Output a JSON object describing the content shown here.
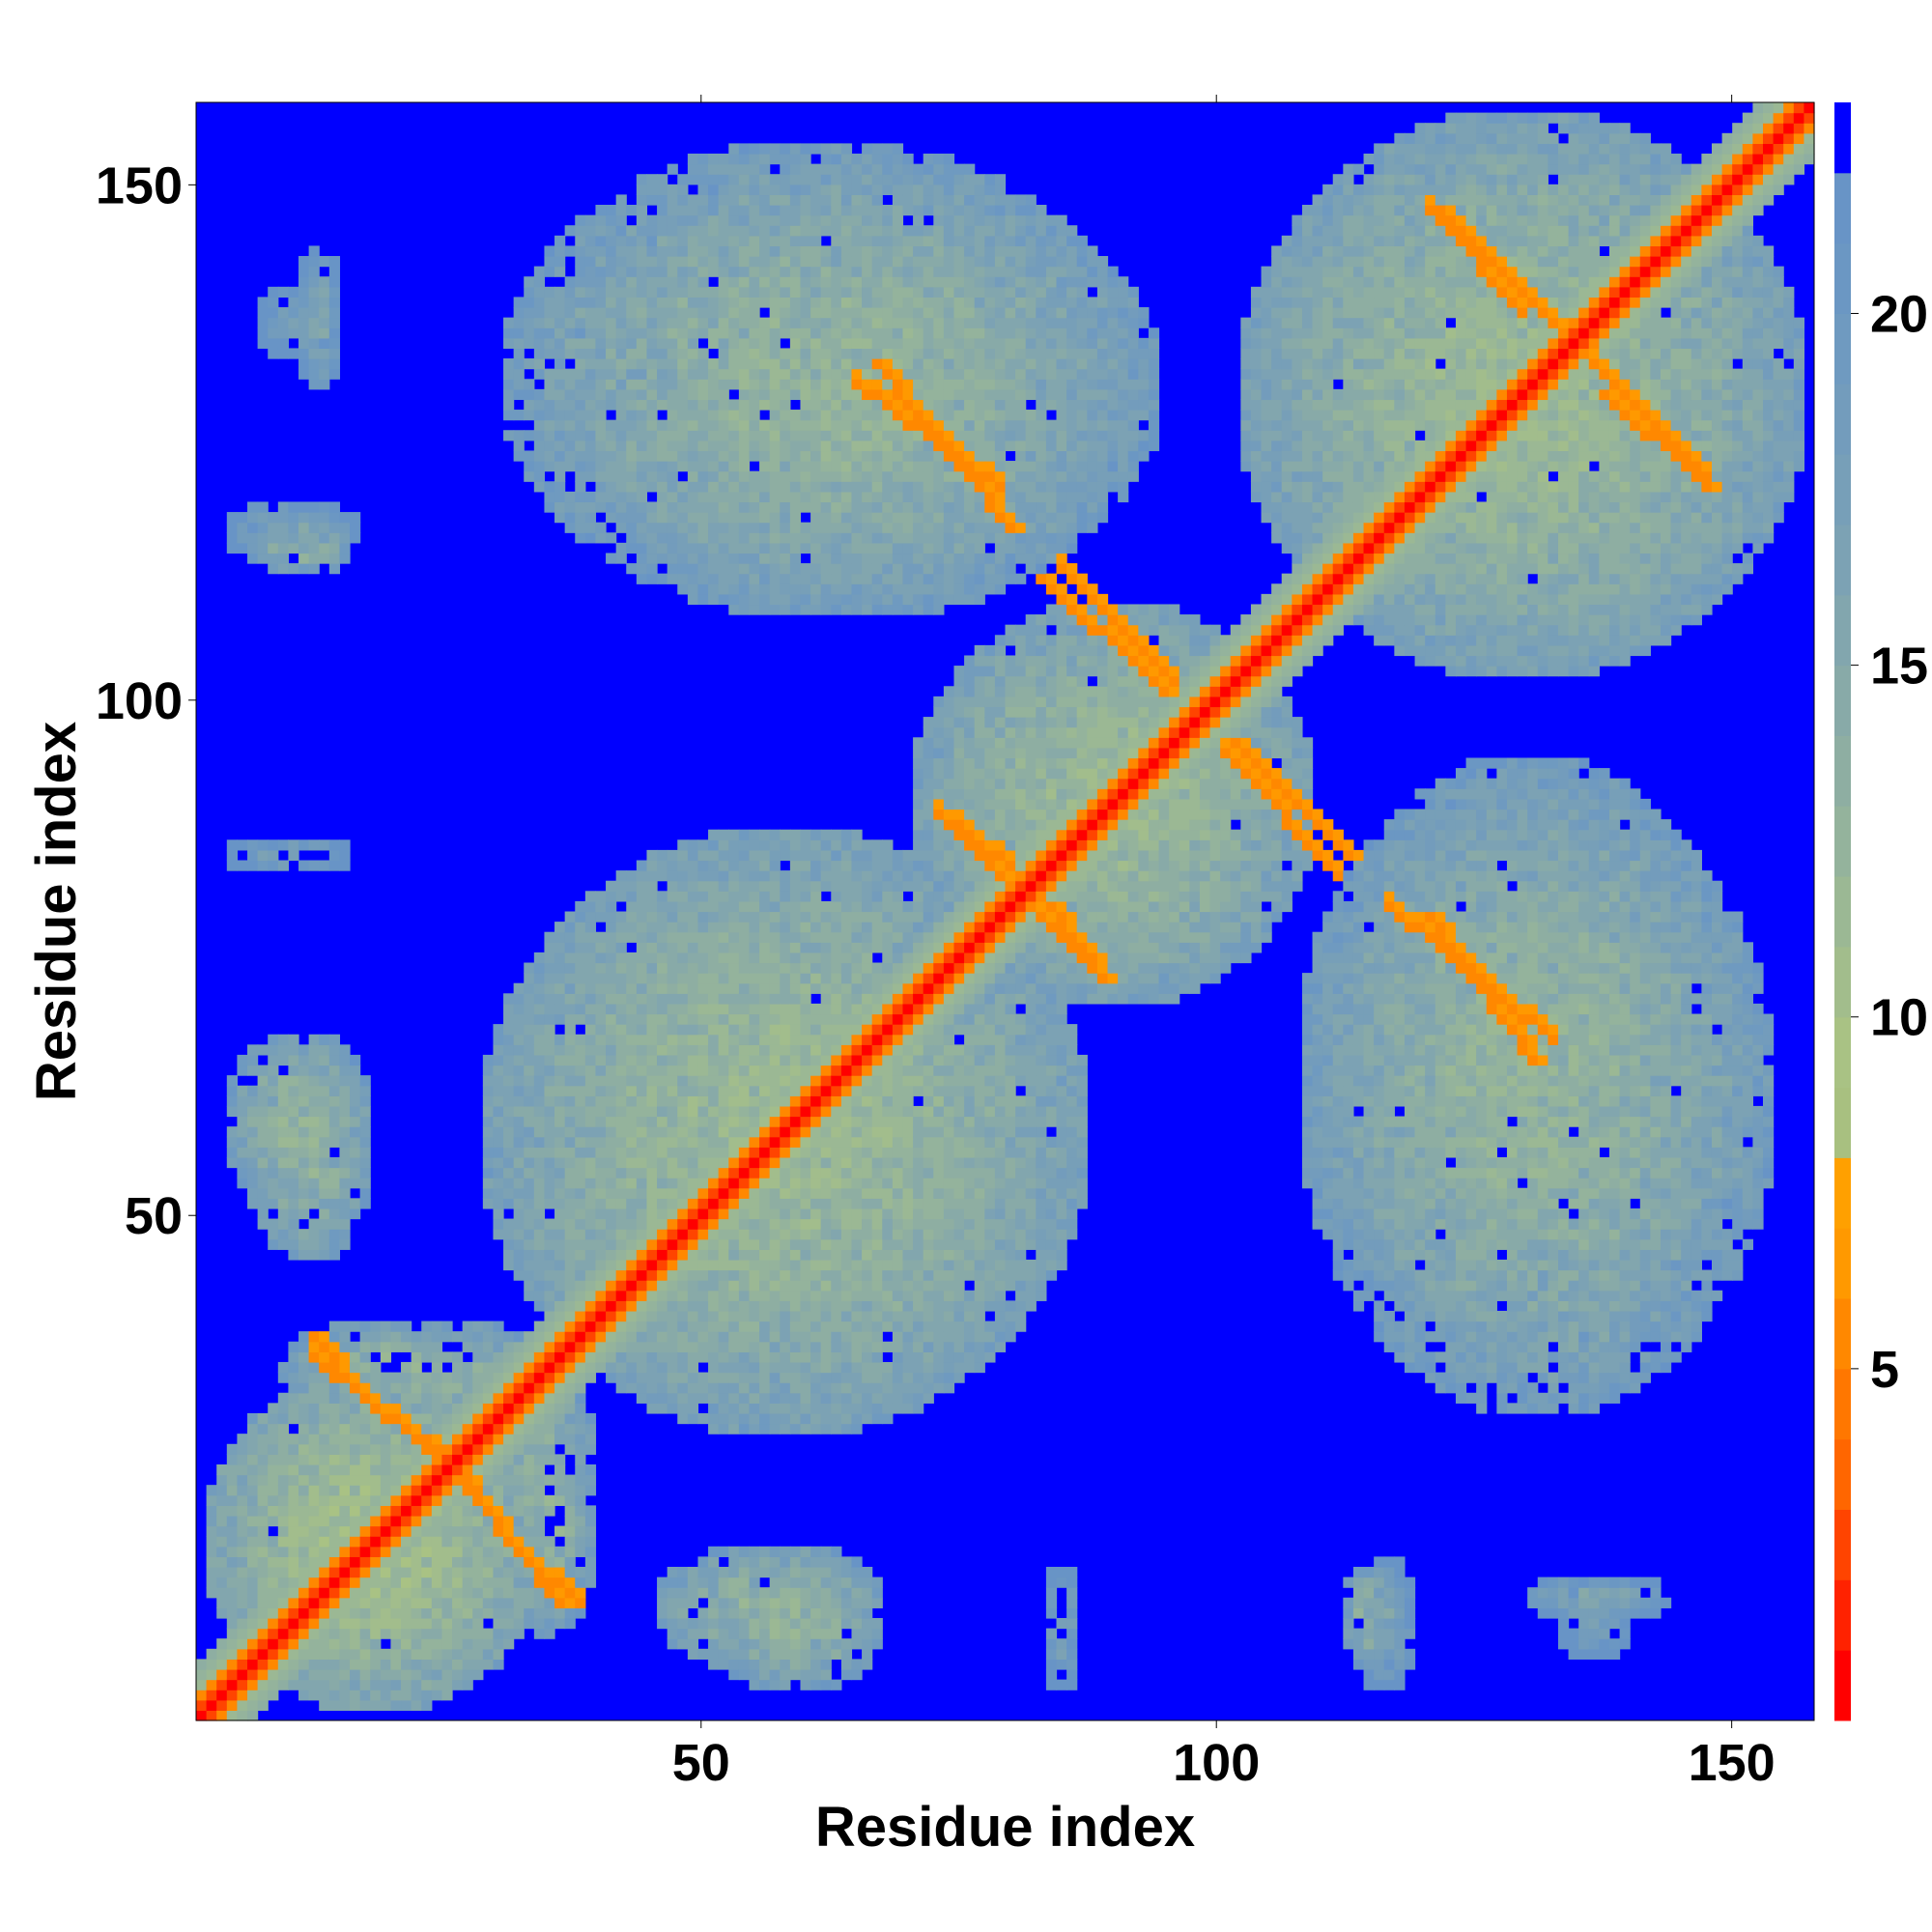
{
  "chart_data": {
    "type": "heatmap",
    "title": "",
    "xlabel": "Residue index",
    "ylabel": "Residue index",
    "n_residues": 158,
    "xlim": [
      1,
      158
    ],
    "ylim": [
      1,
      158
    ],
    "x_ticks": [
      50,
      100,
      150
    ],
    "y_ticks": [
      50,
      100,
      150
    ],
    "colorbar": {
      "ticks": [
        5,
        10,
        15,
        20
      ],
      "range": [
        0,
        23
      ],
      "levels": [
        {
          "max": 1,
          "color": "#ff0000"
        },
        {
          "max": 2,
          "color": "#ff2200"
        },
        {
          "max": 3,
          "color": "#ff4400"
        },
        {
          "max": 4,
          "color": "#ff6600"
        },
        {
          "max": 5,
          "color": "#ff7700"
        },
        {
          "max": 6,
          "color": "#ff8800"
        },
        {
          "max": 7,
          "color": "#ff9900"
        },
        {
          "max": 8,
          "color": "#ffa000"
        },
        {
          "max": 9,
          "color": "#a8c080"
        },
        {
          "max": 10,
          "color": "#a9c284"
        },
        {
          "max": 11,
          "color": "#a2bd8c"
        },
        {
          "max": 12,
          "color": "#9bb894"
        },
        {
          "max": 13,
          "color": "#94b39c"
        },
        {
          "max": 14,
          "color": "#8eaea2"
        },
        {
          "max": 15,
          "color": "#88aaa8"
        },
        {
          "max": 16,
          "color": "#82a6ae"
        },
        {
          "max": 17,
          "color": "#7ca2b4"
        },
        {
          "max": 18,
          "color": "#779fb8"
        },
        {
          "max": 19,
          "color": "#739cbc"
        },
        {
          "max": 20,
          "color": "#6f9ac0"
        },
        {
          "max": 21,
          "color": "#6b97c3"
        },
        {
          "max": 22,
          "color": "#6894c6"
        },
        {
          "max": 23,
          "color": "#0000ff"
        }
      ]
    },
    "background_value": 23,
    "diagonal_value": 1,
    "contact_regions": [
      {
        "x": [
          1,
          35
        ],
        "y": [
          1,
          35
        ],
        "value": 11
      },
      {
        "x": [
          28,
          88
        ],
        "y": [
          28,
          88
        ],
        "value": 12
      },
      {
        "x": [
          70,
          110
        ],
        "y": [
          70,
          110
        ],
        "value": 12
      },
      {
        "x": [
          102,
          158
        ],
        "y": [
          102,
          158
        ],
        "value": 12
      },
      {
        "x": [
          30,
          93
        ],
        "y": [
          108,
          155
        ],
        "value": 13
      },
      {
        "x": [
          108,
          153
        ],
        "y": [
          35,
          95
        ],
        "value": 13
      },
      {
        "x": [
          3,
          18
        ],
        "y": [
          50,
          68
        ],
        "value": 13
      },
      {
        "x": [
          8,
          36
        ],
        "y": [
          30,
          40
        ],
        "value": 13
      },
      {
        "x": [
          45,
          68
        ],
        "y": [
          5,
          18
        ],
        "value": 13
      },
      {
        "x": [
          112,
          118
        ],
        "y": [
          5,
          16
        ],
        "value": 14
      },
      {
        "x": [
          130,
          145
        ],
        "y": [
          10,
          15
        ],
        "value": 16
      },
      {
        "x": [
          3,
          16
        ],
        "y": [
          83,
          87
        ],
        "value": 17
      },
      {
        "x": [
          3,
          17
        ],
        "y": [
          113,
          120
        ],
        "value": 17
      },
      {
        "x": [
          6,
          15
        ],
        "y": [
          133,
          141
        ],
        "value": 18
      }
    ],
    "strong_contacts": [
      {
        "from": [
          67,
          133
        ],
        "to": [
          80,
          117
        ],
        "value": 6
      },
      {
        "from": [
          83,
          112
        ],
        "to": [
          95,
          101
        ],
        "value": 6
      },
      {
        "from": [
          102,
          96
        ],
        "to": [
          113,
          85
        ],
        "value": 6
      },
      {
        "from": [
          122,
          148
        ],
        "to": [
          133,
          137
        ],
        "value": 6
      },
      {
        "from": [
          138,
          130
        ],
        "to": [
          148,
          121
        ],
        "value": 6
      },
      {
        "from": [
          121,
          79
        ],
        "to": [
          131,
          65
        ],
        "value": 6
      },
      {
        "from": [
          73,
          89
        ],
        "to": [
          80,
          82
        ],
        "value": 6
      },
      {
        "from": [
          84,
          80
        ],
        "to": [
          89,
          73
        ],
        "value": 6
      },
      {
        "from": [
          23,
          28
        ],
        "to": [
          36,
          12
        ],
        "value": 6
      },
      {
        "from": [
          12,
          38
        ],
        "to": [
          16,
          33
        ],
        "value": 6
      }
    ]
  }
}
